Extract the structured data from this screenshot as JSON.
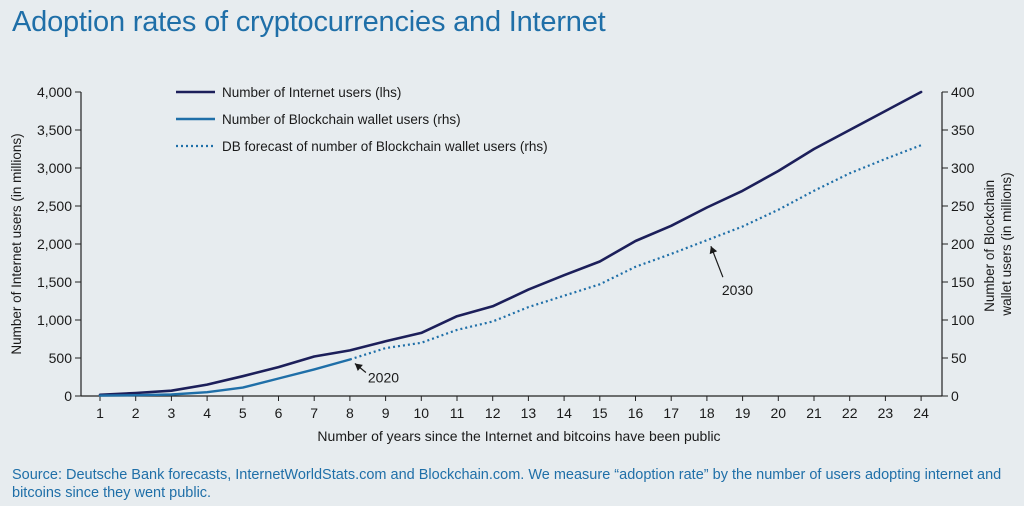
{
  "title": "Adoption rates of cryptocurrencies and Internet",
  "source": "Source: Deutsche Bank forecasts, InternetWorldStats.com and Blockchain.com. We measure “adoption rate” by the number of users adopting internet and bitcoins since they went public.",
  "colors": {
    "title": "#1f6fa8",
    "internet": "#1c1f5a",
    "blockchain": "#1f6fa8",
    "axis": "#222222",
    "background": "#e7ecef"
  },
  "chart_data": {
    "type": "line",
    "xlabel": "Number of years since the Internet and bitcoins have been public",
    "ylabel_left": "Number of Internet users (in millions)",
    "ylabel_right_lines": [
      "Number of Blockchain",
      "wallet users (in millions)"
    ],
    "x": [
      1,
      2,
      3,
      4,
      5,
      6,
      7,
      8,
      9,
      10,
      11,
      12,
      13,
      14,
      15,
      16,
      17,
      18,
      19,
      20,
      21,
      22,
      23,
      24
    ],
    "ylim_left": [
      0,
      4000
    ],
    "ylim_right": [
      0,
      400
    ],
    "yticks_left": [
      "0",
      "500",
      "1,000",
      "1,500",
      "2,000",
      "2,500",
      "3,000",
      "3,500",
      "4,000"
    ],
    "yticks_right": [
      "0",
      "50",
      "100",
      "150",
      "200",
      "250",
      "300",
      "350",
      "400"
    ],
    "grid": false,
    "legend_position": "top-left",
    "series": [
      {
        "name": "Number of Internet users (lhs)",
        "axis": "left",
        "style": "solid",
        "x": [
          1,
          2,
          3,
          4,
          5,
          6,
          7,
          8,
          9,
          10,
          11,
          12,
          13,
          14,
          15,
          16,
          17,
          18,
          19,
          20,
          21,
          22,
          23,
          24
        ],
        "values": [
          16,
          40,
          70,
          150,
          260,
          380,
          520,
          600,
          720,
          830,
          1050,
          1180,
          1400,
          1590,
          1770,
          2040,
          2240,
          2480,
          2700,
          2960,
          3250,
          3500,
          3750,
          4000
        ]
      },
      {
        "name": "Number of Blockchain wallet users (rhs)",
        "axis": "right",
        "style": "solid",
        "x": [
          1,
          2,
          3,
          4,
          5,
          6,
          7,
          8
        ],
        "values": [
          0.5,
          1,
          2,
          5,
          11,
          23,
          35,
          48
        ]
      },
      {
        "name": "DB forecast of number of Blockchain wallet users (rhs)",
        "axis": "right",
        "style": "dotted",
        "x": [
          8,
          9,
          10,
          11,
          12,
          13,
          14,
          15,
          16,
          17,
          18,
          19,
          20,
          21,
          22,
          23,
          24
        ],
        "values": [
          48,
          63,
          70,
          87,
          98,
          117,
          132,
          147,
          170,
          187,
          205,
          223,
          245,
          270,
          293,
          312,
          330
        ]
      }
    ],
    "annotations": [
      {
        "text": "2020",
        "x": 8,
        "y": 48,
        "axis": "right"
      },
      {
        "text": "2030",
        "x": 18,
        "y": 205,
        "axis": "right"
      }
    ]
  }
}
